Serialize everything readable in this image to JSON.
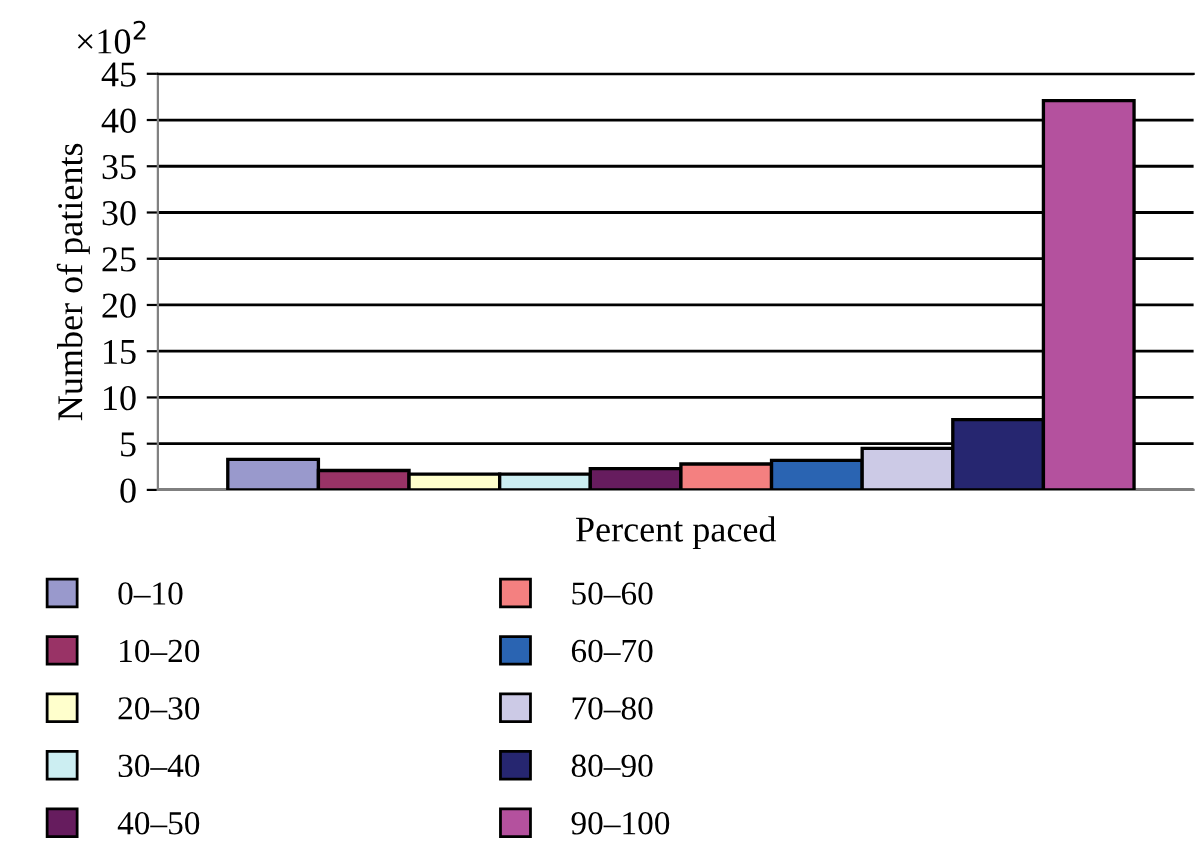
{
  "chart_data": {
    "type": "bar",
    "xlabel": "Percent paced",
    "ylabel": "Number of patients",
    "annotations": [
      "×10$^{2}$"
    ],
    "categories": [
      null
    ],
    "series": [
      {
        "name": "0–10",
        "color": "#9999cc",
        "values": [
          3.3
        ]
      },
      {
        "name": "10–20",
        "color": "#993366",
        "values": [
          2.1
        ]
      },
      {
        "name": "20–30",
        "color": "#ffffcc",
        "values": [
          1.7
        ]
      },
      {
        "name": "30–40",
        "color": "#cceef2",
        "values": [
          1.7
        ]
      },
      {
        "name": "40–50",
        "color": "#661c5e",
        "values": [
          2.3
        ]
      },
      {
        "name": "50–60",
        "color": "#f48080",
        "values": [
          2.8
        ]
      },
      {
        "name": "60–70",
        "color": "#2a64b2",
        "values": [
          3.2
        ]
      },
      {
        "name": "70–80",
        "color": "#cccae6",
        "values": [
          4.5
        ]
      },
      {
        "name": "80–90",
        "color": "#262670",
        "values": [
          7.6
        ]
      },
      {
        "name": "90–100",
        "color": "#b4519e",
        "values": [
          42.1
        ]
      }
    ],
    "ylim": [
      0,
      45
    ],
    "yticks": [
      0,
      5,
      10,
      15,
      20,
      25,
      30,
      35,
      40,
      45
    ],
    "grid": "y",
    "legend": "bottom"
  }
}
